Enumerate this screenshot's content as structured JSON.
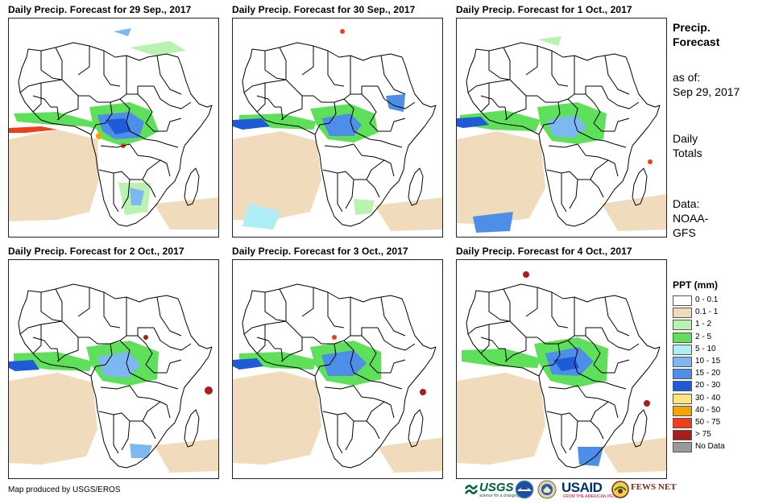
{
  "panels": [
    {
      "title": "Daily Precip. Forecast for 29 Sep., 2017"
    },
    {
      "title": "Daily Precip. Forecast for 30 Sep., 2017"
    },
    {
      "title": "Daily Precip. Forecast for 1 Oct., 2017"
    },
    {
      "title": "Daily Precip. Forecast for 2 Oct., 2017"
    },
    {
      "title": "Daily Precip. Forecast for 3 Oct., 2017"
    },
    {
      "title": "Daily Precip. Forecast for 4 Oct., 2017"
    }
  ],
  "sidebar": {
    "heading_line1": "Precip.",
    "heading_line2": "Forecast",
    "asof_label": "as of:",
    "asof_date": "Sep 29, 2017",
    "totals_line1": "Daily",
    "totals_line2": "Totals",
    "data_label": "Data:",
    "data_line1": "NOAA-",
    "data_line2": "GFS"
  },
  "legend": {
    "title": "PPT (mm)",
    "items": [
      {
        "label": "0 - 0.1",
        "color": "#ffffff"
      },
      {
        "label": "0.1 - 1",
        "color": "#f0dcbd"
      },
      {
        "label": "1 - 2",
        "color": "#b9f2b1"
      },
      {
        "label": "2 - 5",
        "color": "#5fe05a"
      },
      {
        "label": "5 - 10",
        "color": "#aeeef6"
      },
      {
        "label": "10 - 15",
        "color": "#7db9f0"
      },
      {
        "label": "15 - 20",
        "color": "#4c8ee8"
      },
      {
        "label": "20 - 30",
        "color": "#1f5bd6"
      },
      {
        "label": "30 - 40",
        "color": "#ffe680"
      },
      {
        "label": "40 - 50",
        "color": "#f5a300"
      },
      {
        "label": "50 - 75",
        "color": "#ee3f1a"
      },
      {
        "label": "> 75",
        "color": "#a81d1d"
      },
      {
        "label": "No Data",
        "color": "#9a9a9a"
      }
    ]
  },
  "footer": {
    "credit": "Map produced by USGS/EROS",
    "logos": {
      "usgs": "USGS",
      "usgs_tagline": "science for a changing world",
      "usaid": "USAID",
      "usaid_tagline": "FROM THE AMERICAN PEOPLE",
      "fews": "FEWS NET"
    }
  }
}
